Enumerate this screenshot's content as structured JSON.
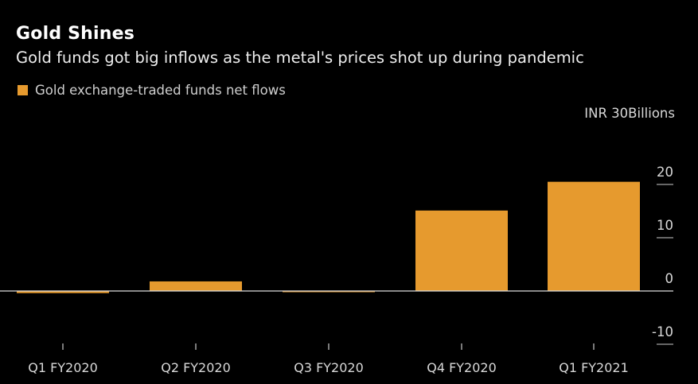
{
  "colors": {
    "bar": "#e69a2e",
    "background": "#000000",
    "axis": "#cccccc",
    "text": "#d8d8d8"
  },
  "chart_data": {
    "type": "bar",
    "title": "Gold Shines",
    "subtitle": "Gold funds got big inflows as the metal's prices shot up during pandemic",
    "unit_label": "INR 30Billions",
    "categories": [
      "Q1 FY2020",
      "Q2 FY2020",
      "Q3 FY2020",
      "Q4 FY2020",
      "Q1 FY2021"
    ],
    "series": [
      {
        "name": "Gold exchange-traded funds net flows",
        "values": [
          -0.4,
          1.8,
          -0.1,
          15.1,
          20.5
        ]
      }
    ],
    "ylim": [
      -10,
      20
    ],
    "yticks": [
      20,
      10,
      0,
      -10
    ],
    "ytick_labels": [
      "20",
      "10",
      "0",
      "-10"
    ],
    "grid": false,
    "legend_position": "top-left"
  }
}
